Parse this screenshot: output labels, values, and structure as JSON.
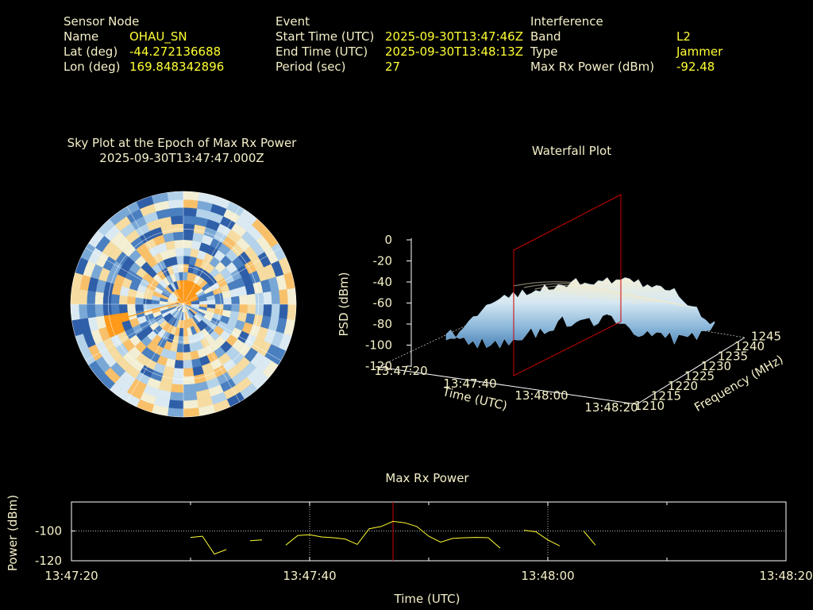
{
  "header": {
    "sensor": {
      "heading": "Sensor Node",
      "rows": [
        {
          "label": "Name",
          "value": "OHAU_SN"
        },
        {
          "label": "Lat (deg)",
          "value": "-44.272136688"
        },
        {
          "label": "Lon (deg)",
          "value": "169.848342896"
        }
      ]
    },
    "event": {
      "heading": "Event",
      "rows": [
        {
          "label": "Start Time (UTC)",
          "value": "2025-09-30T13:47:46Z"
        },
        {
          "label": "End Time (UTC)",
          "value": "2025-09-30T13:48:13Z"
        },
        {
          "label": "Period (sec)",
          "value": "27"
        }
      ]
    },
    "interference": {
      "heading": "Interference",
      "rows": [
        {
          "label": "Band",
          "value": "L2"
        },
        {
          "label": "Type",
          "value": "Jammer"
        },
        {
          "label": "Max Rx Power (dBm)",
          "value": "-92.48"
        }
      ]
    }
  },
  "colors": {
    "label": "#f5f0c8",
    "value": "#ffff33",
    "line": "#ffff33",
    "marker": "#cc0000",
    "grid": "#ffffff",
    "palette_low": "#2f5fa8",
    "palette_mid": "#f2f2dc",
    "palette_high": "#ff9a1a"
  },
  "chart_data": [
    {
      "type": "heatmap",
      "subtype": "polar-sky-plot",
      "title": "Sky Plot at the Epoch of Max Rx Power",
      "subtitle": "2025-09-30T13:47:47.000Z",
      "rings": 3,
      "spokes": 12,
      "color_scale": "blue-cream-orange",
      "hotspots": [
        {
          "azimuth_deg": 255,
          "radius_frac": 0.62,
          "level": "high"
        },
        {
          "azimuth_deg": 20,
          "radius_frac": 0.1,
          "level": "high"
        }
      ]
    },
    {
      "type": "area",
      "subtype": "3d-waterfall",
      "title": "Waterfall Plot",
      "xlabel": "Time (UTC)",
      "ylabel": "Frequency (MHz)",
      "zlabel": "PSD (dBm)",
      "x_ticks": [
        "13:47:20",
        "13:47:40",
        "13:48:00",
        "13:48:20"
      ],
      "y_ticks": [
        "1210",
        "1215",
        "1220",
        "1225",
        "1230",
        "1235",
        "1240",
        "1245"
      ],
      "z_ticks": [
        "0",
        "-20",
        "-40",
        "-60",
        "-80",
        "-100",
        "-120"
      ],
      "zlim": [
        -120,
        0
      ],
      "marker_time": "13:47:47",
      "psd_profile": [
        {
          "freq": 1210,
          "psd": -80
        },
        {
          "freq": 1215,
          "psd": -45
        },
        {
          "freq": 1220,
          "psd": -35
        },
        {
          "freq": 1225,
          "psd": -32
        },
        {
          "freq": 1230,
          "psd": -35
        },
        {
          "freq": 1235,
          "psd": -45
        },
        {
          "freq": 1240,
          "psd": -85
        }
      ]
    },
    {
      "type": "line",
      "title": "Max Rx Power",
      "xlabel": "Time (UTC)",
      "ylabel": "Power (dBm)",
      "x_ticks": [
        "13:47:20",
        "13:47:40",
        "13:48:00",
        "13:48:20"
      ],
      "y_ticks": [
        "-100",
        "-120"
      ],
      "xlim": [
        "13:47:20",
        "13:48:20"
      ],
      "ylim": [
        -120,
        -80.5
      ],
      "marker_time": "13:47:47",
      "segments": [
        [
          [
            "13:47:30",
            -104.3
          ],
          [
            "13:47:31",
            -103.5
          ],
          [
            "13:47:32",
            -115.5
          ],
          [
            "13:47:33",
            -112.5
          ]
        ],
        [
          [
            "13:47:35",
            -106.5
          ],
          [
            "13:47:36",
            -106
          ]
        ],
        [
          [
            "13:47:38",
            -109.5
          ],
          [
            "13:47:39",
            -103
          ],
          [
            "13:47:40",
            -102.5
          ],
          [
            "13:47:41",
            -104
          ],
          [
            "13:47:42",
            -104.5
          ],
          [
            "13:47:43",
            -105.5
          ],
          [
            "13:47:44",
            -109
          ],
          [
            "13:47:45",
            -98.5
          ],
          [
            "13:47:46",
            -97
          ],
          [
            "13:47:47",
            -93.5
          ],
          [
            "13:47:48",
            -94.5
          ],
          [
            "13:47:49",
            -97
          ],
          [
            "13:47:50",
            -103.5
          ],
          [
            "13:47:51",
            -107.5
          ],
          [
            "13:47:52",
            -105
          ],
          [
            "13:47:53",
            -104.5
          ],
          [
            "13:47:54",
            -104.3
          ],
          [
            "13:47:55",
            -104.5
          ],
          [
            "13:47:56",
            -111.5
          ]
        ],
        [
          [
            "13:47:58",
            -99.5
          ],
          [
            "13:47:59",
            -100.5
          ],
          [
            "13:48:00",
            -106
          ],
          [
            "13:48:01",
            -110
          ]
        ],
        [
          [
            "13:48:03",
            -100
          ],
          [
            "13:48:04",
            -109.5
          ]
        ]
      ]
    }
  ]
}
